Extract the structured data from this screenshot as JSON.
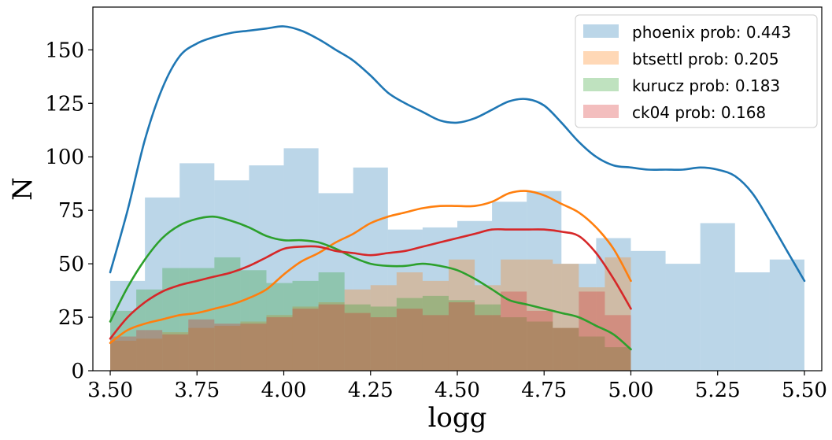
{
  "chart_data": {
    "type": "bar",
    "title": "",
    "xlabel": "logg",
    "ylabel": "N",
    "xlim": [
      3.45,
      5.55
    ],
    "ylim": [
      0,
      170
    ],
    "xticks": [
      3.5,
      3.75,
      4.0,
      4.25,
      4.5,
      4.75,
      5.0,
      5.25,
      5.5
    ],
    "xtick_labels": [
      "3.50",
      "3.75",
      "4.00",
      "4.25",
      "4.50",
      "4.75",
      "5.00",
      "5.25",
      "5.50"
    ],
    "yticks": [
      0,
      25,
      50,
      75,
      100,
      125,
      150
    ],
    "ytick_labels": [
      "0",
      "25",
      "50",
      "75",
      "100",
      "125",
      "150"
    ],
    "legend_position": "top-right",
    "series": [
      {
        "name": "phoenix prob: 0.443",
        "color": "#1f77b4",
        "bin_edges": [
          3.5,
          3.6,
          3.7,
          3.8,
          3.9,
          4.0,
          4.1,
          4.2,
          4.3,
          4.4,
          4.5,
          4.6,
          4.7,
          4.8,
          4.9,
          5.0,
          5.1,
          5.2,
          5.3,
          5.4,
          5.5
        ],
        "counts": [
          42,
          81,
          97,
          89,
          96,
          104,
          83,
          95,
          66,
          67,
          70,
          79,
          84,
          50,
          62,
          56,
          50,
          69,
          46,
          52
        ],
        "kde": {
          "x": [
            3.5,
            3.55,
            3.6,
            3.65,
            3.7,
            3.75,
            3.8,
            3.85,
            3.9,
            3.95,
            4.0,
            4.05,
            4.1,
            4.15,
            4.2,
            4.25,
            4.3,
            4.35,
            4.4,
            4.45,
            4.5,
            4.55,
            4.6,
            4.65,
            4.7,
            4.75,
            4.8,
            4.85,
            4.9,
            4.95,
            5.0,
            5.05,
            5.1,
            5.15,
            5.2,
            5.25,
            5.3,
            5.35,
            5.4,
            5.45,
            5.5
          ],
          "y": [
            46,
            75,
            108,
            132,
            147,
            153,
            156,
            158,
            159,
            160,
            161,
            159,
            155,
            150,
            145,
            138,
            130,
            125,
            121,
            117,
            116,
            118,
            122,
            126,
            127,
            124,
            116,
            107,
            100,
            96,
            95,
            94,
            94,
            94,
            95,
            94,
            91,
            83,
            70,
            56,
            42
          ]
        }
      },
      {
        "name": "btsettl prob: 0.205",
        "color": "#ff7f0e",
        "bin_edges": [
          3.5,
          3.575,
          3.65,
          3.725,
          3.8,
          3.875,
          3.95,
          4.025,
          4.1,
          4.175,
          4.25,
          4.325,
          4.4,
          4.475,
          4.55,
          4.625,
          4.7,
          4.775,
          4.85,
          4.925,
          5.0
        ],
        "counts": [
          14,
          15,
          18,
          20,
          21,
          23,
          26,
          30,
          32,
          38,
          40,
          46,
          42,
          52,
          40,
          52,
          52,
          50,
          39,
          53
        ],
        "kde": {
          "x": [
            3.5,
            3.55,
            3.6,
            3.65,
            3.7,
            3.75,
            3.8,
            3.85,
            3.9,
            3.95,
            4.0,
            4.05,
            4.1,
            4.15,
            4.2,
            4.25,
            4.3,
            4.35,
            4.4,
            4.45,
            4.5,
            4.55,
            4.6,
            4.65,
            4.7,
            4.75,
            4.8,
            4.85,
            4.9,
            4.95,
            5.0
          ],
          "y": [
            13,
            19,
            22,
            24,
            26,
            27,
            29,
            31,
            34,
            38,
            45,
            51,
            55,
            60,
            64,
            69,
            72,
            74,
            76,
            77,
            77,
            77,
            79,
            83,
            84,
            82,
            78,
            74,
            67,
            57,
            42
          ]
        }
      },
      {
        "name": "kurucz prob: 0.183",
        "color": "#2ca02c",
        "bin_edges": [
          3.5,
          3.575,
          3.65,
          3.725,
          3.8,
          3.875,
          3.95,
          4.025,
          4.1,
          4.175,
          4.25,
          4.325,
          4.4,
          4.475,
          4.55,
          4.625,
          4.7,
          4.775,
          4.85,
          4.925,
          5.0
        ],
        "counts": [
          28,
          38,
          48,
          48,
          53,
          47,
          41,
          42,
          46,
          31,
          30,
          34,
          35,
          33,
          31,
          25,
          23,
          20,
          16,
          11
        ],
        "kde": {
          "x": [
            3.5,
            3.55,
            3.6,
            3.65,
            3.7,
            3.75,
            3.8,
            3.85,
            3.9,
            3.95,
            4.0,
            4.05,
            4.1,
            4.15,
            4.2,
            4.25,
            4.3,
            4.35,
            4.4,
            4.45,
            4.5,
            4.55,
            4.6,
            4.65,
            4.7,
            4.75,
            4.8,
            4.85,
            4.9,
            4.95,
            5.0
          ],
          "y": [
            23,
            39,
            52,
            62,
            68,
            71,
            72,
            70,
            67,
            63,
            61,
            61,
            60,
            57,
            53,
            50,
            49,
            49,
            50,
            49,
            47,
            43,
            38,
            33,
            31,
            29,
            27,
            25,
            21,
            17,
            10
          ]
        }
      },
      {
        "name": "ck04 prob: 0.168",
        "color": "#d62728",
        "bin_edges": [
          3.5,
          3.575,
          3.65,
          3.725,
          3.8,
          3.875,
          3.95,
          4.025,
          4.1,
          4.175,
          4.25,
          4.325,
          4.4,
          4.475,
          4.55,
          4.625,
          4.7,
          4.775,
          4.85,
          4.925,
          5.0
        ],
        "counts": [
          16,
          19,
          17,
          24,
          22,
          22,
          25,
          29,
          31,
          27,
          25,
          29,
          26,
          32,
          26,
          37,
          28,
          20,
          37,
          26
        ],
        "kde": {
          "x": [
            3.5,
            3.55,
            3.6,
            3.65,
            3.7,
            3.75,
            3.8,
            3.85,
            3.9,
            3.95,
            4.0,
            4.05,
            4.1,
            4.15,
            4.2,
            4.25,
            4.3,
            4.35,
            4.4,
            4.45,
            4.5,
            4.55,
            4.6,
            4.65,
            4.7,
            4.75,
            4.8,
            4.85,
            4.9,
            4.95,
            5.0
          ],
          "y": [
            15,
            25,
            32,
            37,
            40,
            42,
            44,
            46,
            49,
            53,
            57,
            58,
            58,
            56,
            55,
            54,
            55,
            56,
            58,
            60,
            62,
            64,
            66,
            66,
            66,
            66,
            65,
            63,
            55,
            43,
            29
          ]
        }
      }
    ]
  }
}
